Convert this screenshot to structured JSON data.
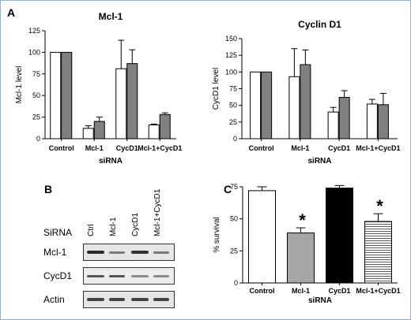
{
  "panels": {
    "A": {
      "letter": "A",
      "charts": [
        {
          "type": "bar",
          "title": "Mcl-1",
          "ylabel": "Mcl-1 level",
          "xlabel": "siRNA",
          "categories": [
            "Control",
            "Mcl-1",
            "CycD1",
            "Mcl-1+CycD1"
          ],
          "ylim": [
            0,
            125
          ],
          "yticks": [
            0,
            25,
            50,
            75,
            100,
            125
          ],
          "series": [
            {
              "values": [
                100,
                12,
                81,
                16
              ],
              "errors": [
                0,
                3,
                33,
                1
              ],
              "fill": "#ffffff"
            },
            {
              "values": [
                100,
                20,
                87,
                28
              ],
              "errors": [
                0,
                5,
                16,
                2
              ],
              "fill": "#808080"
            }
          ]
        },
        {
          "type": "bar",
          "title": "Cyclin D1",
          "ylabel": "CycD1 level",
          "xlabel": "siRNA",
          "categories": [
            "Control",
            "Mcl-1",
            "CycD1",
            "Mcl-1+CycD1"
          ],
          "ylim": [
            0,
            150
          ],
          "yticks": [
            0,
            25,
            50,
            75,
            100,
            125,
            150
          ],
          "series": [
            {
              "values": [
                100,
                93,
                40,
                52
              ],
              "errors": [
                0,
                42,
                7,
                7
              ],
              "fill": "#ffffff"
            },
            {
              "values": [
                100,
                111,
                62,
                51
              ],
              "errors": [
                0,
                22,
                10,
                17
              ],
              "fill": "#808080"
            }
          ]
        }
      ]
    },
    "B": {
      "letter": "B",
      "header": "SiRNA",
      "lanes": [
        "Ctrl",
        "Mcl-1",
        "CycD1",
        "Mcl-1+CycD1"
      ],
      "rows": [
        "Mcl-1",
        "CycD1",
        "Actin"
      ]
    },
    "C": {
      "letter": "C",
      "chart": {
        "type": "bar",
        "ylabel": "% survival",
        "xlabel": "siRNA",
        "categories": [
          "Control",
          "Mcl-1",
          "CycD1",
          "Mcl-1+CycD1"
        ],
        "ylim": [
          0,
          75
        ],
        "yticks": [
          0,
          25,
          50,
          75
        ],
        "values": [
          72,
          39,
          74,
          48
        ],
        "errors": [
          3,
          4,
          2,
          6
        ],
        "fills": [
          "#ffffff",
          "#a6a6a6",
          "#000000",
          "hatch"
        ],
        "significance": [
          "",
          "*",
          "",
          "*"
        ]
      }
    }
  }
}
